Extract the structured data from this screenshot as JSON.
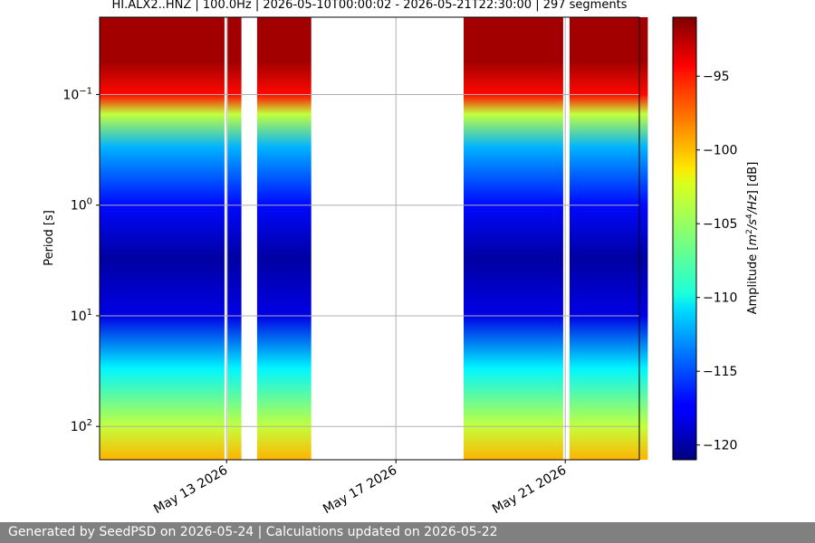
{
  "chart_data": {
    "type": "heatmap",
    "title": "HI.ALX2..HNZ | 100.0Hz | 2026-05-10T00:00:02 - 2026-05-21T22:30:00 | 297 segments",
    "xlabel": "",
    "ylabel": "Period [s]",
    "x_range": [
      "2026-05-10",
      "2026-05-22"
    ],
    "y_scale": "log",
    "y_inverted": true,
    "y_range": [
      0.02,
      200
    ],
    "x_ticks": [
      "May 13 2026",
      "May 17 2026",
      "May 21 2026"
    ],
    "y_ticks": [
      {
        "value": 0.1,
        "label": "10"
      },
      {
        "value": 1,
        "label": "10"
      },
      {
        "value": 10,
        "label": "10"
      },
      {
        "value": 100,
        "label": "10"
      }
    ],
    "y_tick_exponents": [
      "−1",
      "0",
      "1",
      "2"
    ],
    "grid": true,
    "colorbar": {
      "label": "Amplitude [m²/s⁴/Hz] [dB]",
      "label_parts": [
        "Amplitude [",
        "m",
        "2",
        "/s",
        "4",
        "/Hz",
        "] [dB]"
      ],
      "range": [
        -121,
        -91
      ],
      "ticks": [
        "−95",
        "−100",
        "−105",
        "−110",
        "−115",
        "−120"
      ],
      "tick_values": [
        -95,
        -100,
        -105,
        -110,
        -115,
        -120
      ],
      "colormap": "jet"
    },
    "data_segments": [
      {
        "start": "2026-05-10",
        "end": "2026-05-11"
      },
      {
        "start": "2026-05-11",
        "end": "2026-05-12"
      },
      {
        "start": "2026-05-13",
        "end": "2026-05-13"
      },
      {
        "start": "2026-05-13",
        "end": "2026-05-14"
      },
      {
        "start": "2026-05-18",
        "end": "2026-05-19"
      },
      {
        "start": "2026-05-19",
        "end": "2026-05-20"
      },
      {
        "start": "2026-05-20",
        "end": "2026-05-20"
      },
      {
        "start": "2026-05-21",
        "end": "2026-05-21"
      },
      {
        "start": "2026-05-21",
        "end": "2026-05-22"
      }
    ],
    "amplitude_profile": [
      {
        "period": 0.025,
        "db": -92
      },
      {
        "period": 0.05,
        "db": -92
      },
      {
        "period": 0.1,
        "db": -95
      },
      {
        "period": 0.15,
        "db": -104
      },
      {
        "period": 0.3,
        "db": -112
      },
      {
        "period": 1,
        "db": -117
      },
      {
        "period": 3,
        "db": -120
      },
      {
        "period": 10,
        "db": -118
      },
      {
        "period": 30,
        "db": -110
      },
      {
        "period": 100,
        "db": -104
      },
      {
        "period": 200,
        "db": -100
      }
    ]
  },
  "footer": {
    "text": "Generated by SeedPSD on 2026-05-24 | Calculations updated on 2026-05-22"
  }
}
